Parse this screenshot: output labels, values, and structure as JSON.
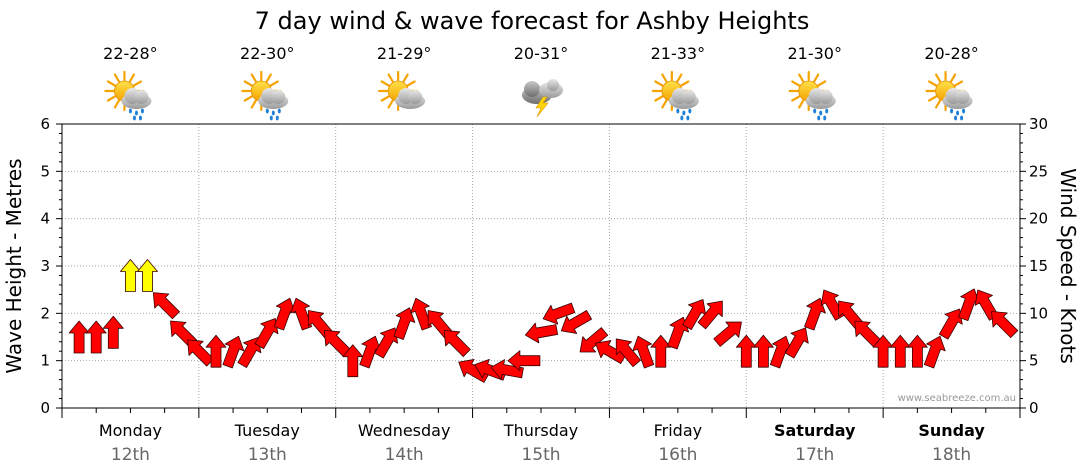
{
  "colors": {
    "arrow_normal": "#ff0000",
    "arrow_strong": "#ffff00",
    "grid": "#999999",
    "date": "#666666"
  },
  "chart_data": {
    "type": "line",
    "title": "7 day wind & wave forecast for Ashby Heights",
    "left_axis_label": "Wave Height - Metres",
    "right_axis_label": "Wind Speed - Knots",
    "left_ylim": [
      0,
      6
    ],
    "right_ylim": [
      0,
      30
    ],
    "left_ticks": [
      "0",
      "1",
      "2",
      "3",
      "4",
      "5",
      "6"
    ],
    "right_ticks": [
      "0",
      "5",
      "10",
      "15",
      "20",
      "25",
      "30"
    ],
    "x_unit": "hours from Monday 12th 00:00",
    "xlim": [
      0,
      168
    ],
    "credit": "www.seabreeze.com.au",
    "days": [
      {
        "name": "Monday",
        "date": "12th",
        "bold": false,
        "temp": "22-28°",
        "icon": "sun-cloud-rain-icon"
      },
      {
        "name": "Tuesday",
        "date": "13th",
        "bold": false,
        "temp": "22-30°",
        "icon": "sun-cloud-rain-icon"
      },
      {
        "name": "Wednesday",
        "date": "14th",
        "bold": false,
        "temp": "21-29°",
        "icon": "sun-cloud-icon"
      },
      {
        "name": "Thursday",
        "date": "15th",
        "bold": false,
        "temp": "20-31°",
        "icon": "storm-cloud-icon"
      },
      {
        "name": "Friday",
        "date": "16th",
        "bold": false,
        "temp": "21-33°",
        "icon": "sun-cloud-rain-icon"
      },
      {
        "name": "Saturday",
        "date": "17th",
        "bold": true,
        "temp": "21-30°",
        "icon": "sun-cloud-rain-icon"
      },
      {
        "name": "Sunday",
        "date": "18th",
        "bold": true,
        "temp": "20-28°",
        "icon": "sun-cloud-rain-icon"
      }
    ],
    "series": [
      {
        "name": "Wind Speed - Knots",
        "x": [
          3,
          6,
          9,
          12,
          15,
          18,
          21,
          24,
          27,
          30,
          33,
          36,
          39,
          42,
          45,
          48,
          51,
          54,
          57,
          60,
          63,
          66,
          69,
          72,
          75,
          78,
          81,
          84,
          87,
          90,
          93,
          96,
          99,
          102,
          105,
          108,
          111,
          114,
          117,
          120,
          123,
          126,
          129,
          132,
          135,
          138,
          141,
          144,
          147,
          150,
          153,
          156,
          159,
          162,
          165
        ],
        "values": [
          7.5,
          7.5,
          8,
          14,
          14,
          11,
          8,
          6,
          6,
          6,
          6,
          8,
          10,
          10,
          9,
          7,
          5,
          6,
          7,
          9,
          10,
          9,
          7,
          4,
          4,
          4,
          5,
          8,
          10,
          9,
          7,
          6,
          6,
          6,
          6,
          8,
          10,
          10,
          8,
          6,
          6,
          6,
          7,
          10,
          11,
          10,
          8,
          6,
          6,
          6,
          6,
          9,
          11,
          11,
          9
        ],
        "direction_deg": [
          180,
          180,
          180,
          180,
          180,
          135,
          135,
          135,
          180,
          200,
          210,
          210,
          200,
          160,
          140,
          135,
          180,
          200,
          210,
          200,
          160,
          140,
          135,
          120,
          110,
          100,
          90,
          80,
          70,
          60,
          50,
          120,
          140,
          160,
          180,
          200,
          210,
          220,
          230,
          180,
          180,
          200,
          210,
          200,
          150,
          140,
          135,
          180,
          180,
          180,
          200,
          210,
          200,
          150,
          135
        ]
      }
    ]
  }
}
